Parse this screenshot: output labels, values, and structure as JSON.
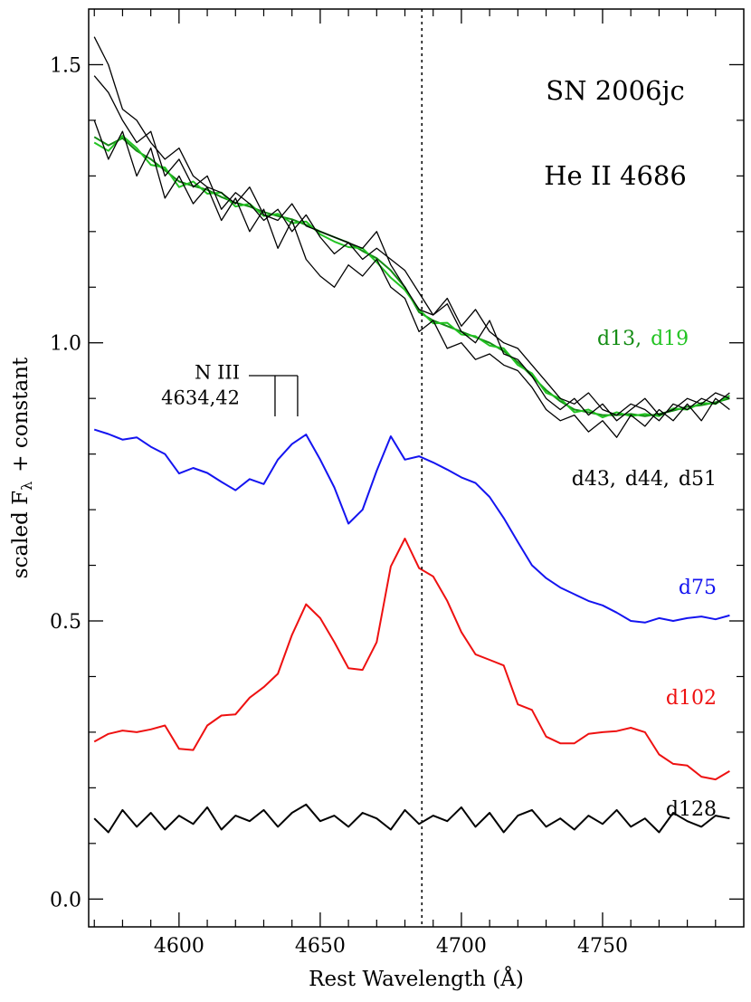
{
  "chart_data": {
    "type": "line",
    "title": "SN 2006jc",
    "subtitle": "He II 4686",
    "xlabel": "Rest Wavelength (Å)",
    "ylabel": "scaled F",
    "ylabel_subscript": "λ",
    "ylabel_rest": "+ constant",
    "label_separator": ",",
    "feature_label": "N III",
    "feature_wavelengths_label": "4634,42",
    "feature_wavelengths": [
      4634,
      4642
    ],
    "reference_line": 4686,
    "xlim": [
      4568,
      4800
    ],
    "ylim": [
      -0.05,
      1.6
    ],
    "xticks": [
      4600,
      4650,
      4700,
      4750
    ],
    "xminor": [
      4570,
      4580,
      4590,
      4610,
      4620,
      4630,
      4640,
      4660,
      4670,
      4680,
      4690,
      4710,
      4720,
      4730,
      4740,
      4760,
      4770,
      4780,
      4790
    ],
    "yticks": [
      {
        "value": 0,
        "label": "0.0"
      },
      0.5,
      {
        "value": 1,
        "label": "1.0"
      },
      1.5
    ],
    "yminor": [
      0.1,
      0.2,
      0.3,
      0.4,
      0.6,
      0.7,
      0.8,
      0.9,
      1.1,
      1.2,
      1.3,
      1.4
    ],
    "x": [
      4570,
      4575,
      4580,
      4585,
      4590,
      4595,
      4600,
      4605,
      4610,
      4615,
      4620,
      4625,
      4630,
      4635,
      4640,
      4645,
      4650,
      4655,
      4660,
      4665,
      4670,
      4675,
      4680,
      4685,
      4690,
      4695,
      4700,
      4705,
      4710,
      4715,
      4720,
      4725,
      4730,
      4735,
      4740,
      4745,
      4750,
      4755,
      4760,
      4765,
      4770,
      4775,
      4780,
      4785,
      4790,
      4795
    ],
    "series": [
      {
        "name": "d13",
        "color": "#148c14",
        "linewidth": 2,
        "values": [
          1.37,
          1.355,
          1.368,
          1.345,
          1.33,
          1.31,
          1.29,
          1.282,
          1.275,
          1.262,
          1.252,
          1.245,
          1.235,
          1.228,
          1.222,
          1.212,
          1.2,
          1.19,
          1.18,
          1.165,
          1.152,
          1.13,
          1.1,
          1.055,
          1.04,
          1.03,
          1.02,
          1.01,
          1.0,
          0.985,
          0.965,
          0.94,
          0.915,
          0.895,
          0.88,
          0.875,
          0.87,
          0.87,
          0.872,
          0.868,
          0.872,
          0.878,
          0.885,
          0.888,
          0.893,
          0.9
        ]
      },
      {
        "name": "d19",
        "color": "#22c322",
        "linewidth": 2,
        "values": [
          1.36,
          1.345,
          1.372,
          1.35,
          1.32,
          1.315,
          1.28,
          1.29,
          1.268,
          1.27,
          1.245,
          1.25,
          1.228,
          1.232,
          1.215,
          1.218,
          1.195,
          1.182,
          1.172,
          1.17,
          1.145,
          1.117,
          1.095,
          1.06,
          1.035,
          1.036,
          1.015,
          1.012,
          0.995,
          0.99,
          0.96,
          0.945,
          0.91,
          0.9,
          0.875,
          0.88,
          0.866,
          0.875,
          0.868,
          0.872,
          0.868,
          0.882,
          0.88,
          0.892,
          0.89,
          0.905
        ]
      },
      {
        "name": "d43",
        "color": "#000000",
        "linewidth": 1.3,
        "values": [
          1.4,
          1.33,
          1.38,
          1.3,
          1.35,
          1.26,
          1.3,
          1.25,
          1.28,
          1.22,
          1.26,
          1.2,
          1.24,
          1.17,
          1.22,
          1.15,
          1.12,
          1.1,
          1.14,
          1.12,
          1.15,
          1.1,
          1.08,
          1.02,
          1.04,
          0.99,
          1.0,
          0.97,
          0.98,
          0.96,
          0.95,
          0.92,
          0.88,
          0.86,
          0.87,
          0.84,
          0.86,
          0.83,
          0.87,
          0.85,
          0.88,
          0.86,
          0.89,
          0.86,
          0.9,
          0.88
        ]
      },
      {
        "name": "d44",
        "color": "#000000",
        "linewidth": 1.3,
        "values": [
          1.55,
          1.5,
          1.42,
          1.4,
          1.36,
          1.33,
          1.35,
          1.3,
          1.28,
          1.27,
          1.25,
          1.28,
          1.23,
          1.22,
          1.25,
          1.21,
          1.2,
          1.19,
          1.18,
          1.17,
          1.2,
          1.14,
          1.1,
          1.06,
          1.05,
          1.07,
          1.02,
          1.0,
          1.04,
          0.98,
          0.97,
          0.94,
          0.9,
          0.88,
          0.9,
          0.87,
          0.89,
          0.86,
          0.88,
          0.9,
          0.87,
          0.88,
          0.9,
          0.89,
          0.91,
          0.9
        ]
      },
      {
        "name": "d51",
        "color": "#000000",
        "linewidth": 1.3,
        "values": [
          1.48,
          1.45,
          1.4,
          1.36,
          1.38,
          1.3,
          1.33,
          1.28,
          1.3,
          1.24,
          1.27,
          1.25,
          1.22,
          1.24,
          1.2,
          1.23,
          1.19,
          1.16,
          1.18,
          1.15,
          1.17,
          1.15,
          1.13,
          1.09,
          1.05,
          1.08,
          1.03,
          1.06,
          1.02,
          1.0,
          0.99,
          0.96,
          0.93,
          0.9,
          0.89,
          0.91,
          0.88,
          0.87,
          0.89,
          0.88,
          0.86,
          0.89,
          0.88,
          0.9,
          0.89,
          0.91
        ]
      },
      {
        "name": "d75",
        "color": "#1414f0",
        "linewidth": 2,
        "values": [
          0.844,
          0.836,
          0.826,
          0.83,
          0.813,
          0.8,
          0.765,
          0.775,
          0.766,
          0.75,
          0.735,
          0.755,
          0.746,
          0.79,
          0.818,
          0.835,
          0.79,
          0.74,
          0.675,
          0.7,
          0.77,
          0.832,
          0.79,
          0.796,
          0.785,
          0.772,
          0.758,
          0.748,
          0.723,
          0.685,
          0.642,
          0.6,
          0.577,
          0.56,
          0.548,
          0.536,
          0.528,
          0.515,
          0.5,
          0.497,
          0.505,
          0.5,
          0.505,
          0.508,
          0.503,
          0.51
        ]
      },
      {
        "name": "d102",
        "color": "#ee1111",
        "linewidth": 2,
        "values": [
          0.283,
          0.297,
          0.303,
          0.3,
          0.305,
          0.312,
          0.27,
          0.268,
          0.312,
          0.33,
          0.332,
          0.362,
          0.381,
          0.405,
          0.475,
          0.53,
          0.505,
          0.462,
          0.415,
          0.412,
          0.462,
          0.598,
          0.648,
          0.595,
          0.58,
          0.536,
          0.48,
          0.44,
          0.43,
          0.42,
          0.35,
          0.34,
          0.292,
          0.28,
          0.28,
          0.297,
          0.3,
          0.302,
          0.308,
          0.3,
          0.26,
          0.243,
          0.24,
          0.22,
          0.215,
          0.23
        ]
      },
      {
        "name": "d128",
        "color": "#000000",
        "linewidth": 2,
        "values": [
          0.145,
          0.12,
          0.16,
          0.13,
          0.155,
          0.125,
          0.15,
          0.135,
          0.165,
          0.125,
          0.15,
          0.14,
          0.16,
          0.13,
          0.155,
          0.17,
          0.14,
          0.15,
          0.13,
          0.155,
          0.145,
          0.125,
          0.16,
          0.135,
          0.15,
          0.14,
          0.165,
          0.13,
          0.155,
          0.12,
          0.15,
          0.16,
          0.13,
          0.145,
          0.125,
          0.15,
          0.135,
          0.16,
          0.13,
          0.145,
          0.12,
          0.155,
          0.14,
          0.13,
          0.15,
          0.145
        ]
      }
    ]
  }
}
